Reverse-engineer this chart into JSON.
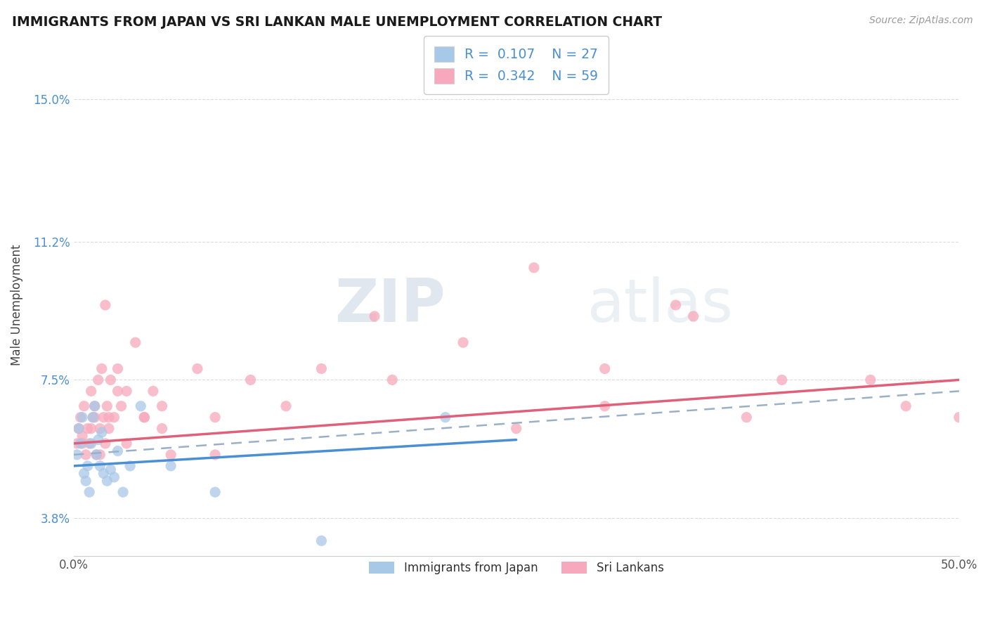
{
  "title": "IMMIGRANTS FROM JAPAN VS SRI LANKAN MALE UNEMPLOYMENT CORRELATION CHART",
  "source": "Source: ZipAtlas.com",
  "ylabel": "Male Unemployment",
  "xlim": [
    0,
    50
  ],
  "ylim": [
    2.8,
    16.2
  ],
  "yticks": [
    3.8,
    7.5,
    11.2,
    15.0
  ],
  "ytick_labels": [
    "3.8%",
    "7.5%",
    "11.2%",
    "15.0%"
  ],
  "xtick_labels": [
    "0.0%",
    "50.0%"
  ],
  "legend_entry1": "R =  0.107    N = 27",
  "legend_entry2": "R =  0.342    N = 59",
  "legend_label1": "Immigrants from Japan",
  "legend_label2": "Sri Lankans",
  "color_japan": "#a8c8e8",
  "color_srilanka": "#f8a8bc",
  "color_japan_line": "#4a8fd4",
  "color_srilanka_line": "#e0607a",
  "color_dashed": "#9ab0c8",
  "watermark_zip": "ZIP",
  "watermark_atlas": "atlas",
  "japan_x": [
    0.2,
    0.3,
    0.4,
    0.5,
    0.6,
    0.7,
    0.8,
    0.9,
    1.0,
    1.1,
    1.2,
    1.3,
    1.4,
    1.5,
    1.6,
    1.7,
    1.9,
    2.1,
    2.3,
    2.5,
    2.8,
    3.2,
    3.8,
    5.5,
    8.0,
    14.0,
    21.0
  ],
  "japan_y": [
    5.5,
    6.2,
    5.8,
    6.5,
    5.0,
    4.8,
    5.2,
    4.5,
    5.8,
    6.5,
    6.8,
    5.5,
    5.9,
    5.2,
    6.1,
    5.0,
    4.8,
    5.1,
    4.9,
    5.6,
    4.5,
    5.2,
    6.8,
    5.2,
    4.5,
    3.2,
    6.5
  ],
  "srilanka_x": [
    0.2,
    0.3,
    0.4,
    0.5,
    0.6,
    0.7,
    0.8,
    0.9,
    1.0,
    1.1,
    1.2,
    1.3,
    1.4,
    1.5,
    1.6,
    1.7,
    1.8,
    1.9,
    2.0,
    2.1,
    2.3,
    2.5,
    2.7,
    3.0,
    3.5,
    4.0,
    4.5,
    5.0,
    5.5,
    7.0,
    8.0,
    10.0,
    14.0,
    17.0,
    22.0,
    26.0,
    30.0,
    34.0,
    38.0,
    45.0,
    50.0,
    0.5,
    1.0,
    1.5,
    2.0,
    3.0,
    5.0,
    8.0,
    12.0,
    18.0,
    25.0,
    30.0,
    35.0,
    40.0,
    47.0,
    1.2,
    1.8,
    2.5,
    4.0
  ],
  "srilanka_y": [
    5.8,
    6.2,
    6.5,
    6.0,
    6.8,
    5.5,
    6.2,
    5.8,
    7.2,
    6.5,
    6.8,
    5.5,
    7.5,
    6.2,
    7.8,
    6.5,
    9.5,
    6.8,
    6.2,
    7.5,
    6.5,
    7.8,
    6.8,
    7.2,
    8.5,
    6.5,
    7.2,
    6.8,
    5.5,
    7.8,
    6.5,
    7.5,
    7.8,
    9.2,
    8.5,
    10.5,
    7.8,
    9.5,
    6.5,
    7.5,
    6.5,
    5.8,
    6.2,
    5.5,
    6.5,
    5.8,
    6.2,
    5.5,
    6.8,
    7.5,
    6.2,
    6.8,
    9.2,
    7.5,
    6.8,
    6.5,
    5.8,
    7.2,
    6.5
  ],
  "japan_line_x": [
    0,
    25
  ],
  "japan_line_y": [
    5.2,
    5.9
  ],
  "sri_line_x": [
    0,
    50
  ],
  "sri_line_y": [
    5.8,
    7.5
  ],
  "dash_line_x": [
    0,
    50
  ],
  "dash_line_y": [
    5.5,
    7.2
  ]
}
